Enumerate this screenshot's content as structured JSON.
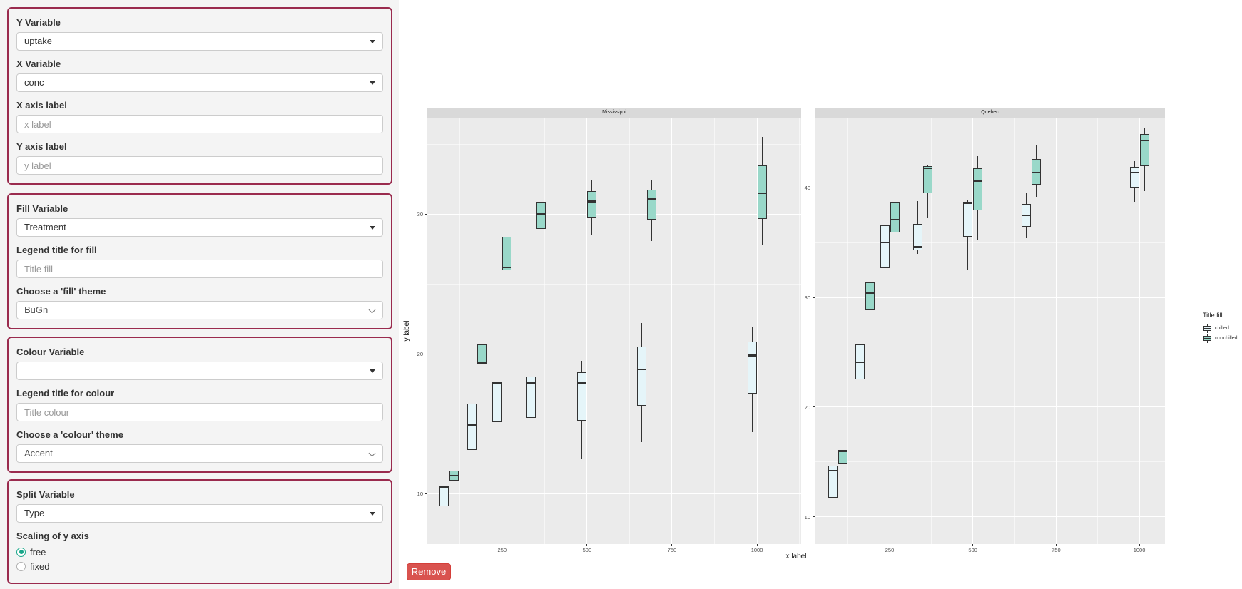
{
  "app": {
    "sidebar_bg": "#f4f4f4",
    "accent_border_color": "#9A2B4E",
    "radio_accent_color": "#18A689",
    "remove_button_color": "#D9534F"
  },
  "sidebar": {
    "section1": {
      "y_variable_label": "Y Variable",
      "y_variable_value": "uptake",
      "x_variable_label": "X Variable",
      "x_variable_value": "conc",
      "x_axis_label_label": "X axis label",
      "x_axis_label_placeholder": "x label",
      "y_axis_label_label": "Y axis label",
      "y_axis_label_placeholder": "y label"
    },
    "section2": {
      "fill_variable_label": "Fill Variable",
      "fill_variable_value": "Treatment",
      "legend_title_fill_label": "Legend title for fill",
      "legend_title_fill_placeholder": "Title fill",
      "fill_theme_label": "Choose a 'fill' theme",
      "fill_theme_value": "BuGn"
    },
    "section3": {
      "colour_variable_label": "Colour Variable",
      "colour_variable_value": "",
      "legend_title_colour_label": "Legend title for colour",
      "legend_title_colour_placeholder": "Title colour",
      "colour_theme_label": "Choose a 'colour' theme",
      "colour_theme_value": "Accent"
    },
    "section4": {
      "split_variable_label": "Split Variable",
      "split_variable_value": "Type",
      "scaling_label": "Scaling of y axis",
      "radio_options": [
        {
          "label": "free",
          "selected": true
        },
        {
          "label": "fixed",
          "selected": false
        }
      ]
    }
  },
  "actions": {
    "remove_label": "Remove"
  },
  "chart_data": {
    "type": "boxplot",
    "xlabel": "x label",
    "ylabel": "y label",
    "legend": {
      "title": "Title fill",
      "position": "right",
      "entries": [
        {
          "label": "chilled",
          "fill": "#E5F5F9"
        },
        {
          "label": "nonchilled",
          "fill": "#99D8C9"
        }
      ]
    },
    "x_ticks": [
      250,
      500,
      750,
      1000
    ],
    "x_minor": [
      125,
      375,
      625,
      875,
      1125
    ],
    "style": {
      "panel_bg": "#EBEBEB",
      "strip_bg": "#D9D9D9",
      "grid_major": "#FFFFFF",
      "grid_minor": "rgba(255,255,255,0.55)",
      "box_border": "#333333",
      "tick_text": "#4d4d4d",
      "strip_text": "#1a1a1a",
      "axis_title_text": "#1a1a1a"
    },
    "facets": [
      {
        "name": "Mississippi",
        "x_domain": [
          30,
          1130
        ],
        "y_domain": [
          6.4,
          36.9
        ],
        "y_ticks": [
          10,
          20,
          30
        ],
        "y_minor": [
          15,
          25,
          35
        ],
        "series": [
          {
            "name": "chilled",
            "boxes": [
              {
                "x": 95,
                "lo": 7.7,
                "q1": 9.1,
                "med": 10.5,
                "q3": 10.55,
                "hi": 10.6
              },
              {
                "x": 175,
                "lo": 11.4,
                "q1": 13.15,
                "med": 14.9,
                "q3": 16.45,
                "hi": 18.0
              },
              {
                "x": 250,
                "lo": 12.3,
                "q1": 15.1,
                "med": 17.9,
                "q3": 18.0,
                "hi": 18.1
              },
              {
                "x": 350,
                "lo": 13.0,
                "q1": 15.45,
                "med": 17.9,
                "q3": 18.4,
                "hi": 18.9
              },
              {
                "x": 500,
                "lo": 12.5,
                "q1": 15.2,
                "med": 17.9,
                "q3": 18.7,
                "hi": 19.5
              },
              {
                "x": 675,
                "lo": 13.7,
                "q1": 16.3,
                "med": 18.9,
                "q3": 20.55,
                "hi": 22.2
              },
              {
                "x": 1000,
                "lo": 14.4,
                "q1": 17.15,
                "med": 19.9,
                "q3": 20.9,
                "hi": 21.9
              }
            ]
          },
          {
            "name": "nonchilled",
            "boxes": [
              {
                "x": 95,
                "lo": 10.6,
                "q1": 10.95,
                "med": 11.3,
                "q3": 11.65,
                "hi": 12.0
              },
              {
                "x": 175,
                "lo": 19.2,
                "q1": 19.3,
                "med": 19.4,
                "q3": 20.7,
                "hi": 22.0
              },
              {
                "x": 250,
                "lo": 25.8,
                "q1": 26.0,
                "med": 26.2,
                "q3": 28.4,
                "hi": 30.6
              },
              {
                "x": 350,
                "lo": 27.9,
                "q1": 28.95,
                "med": 30.0,
                "q3": 30.9,
                "hi": 31.8
              },
              {
                "x": 500,
                "lo": 28.5,
                "q1": 29.7,
                "med": 30.9,
                "q3": 31.65,
                "hi": 32.4
              },
              {
                "x": 675,
                "lo": 28.1,
                "q1": 29.6,
                "med": 31.1,
                "q3": 31.75,
                "hi": 32.4
              },
              {
                "x": 1000,
                "lo": 27.8,
                "q1": 29.65,
                "med": 31.5,
                "q3": 33.5,
                "hi": 35.5
              }
            ]
          }
        ]
      },
      {
        "name": "Quebec",
        "x_domain": [
          25,
          1077
        ],
        "y_domain": [
          7.5,
          46.4
        ],
        "y_ticks": [
          10,
          20,
          30,
          40
        ],
        "y_minor": [
          15,
          25,
          35,
          45
        ],
        "series": [
          {
            "name": "chilled",
            "boxes": [
              {
                "x": 95,
                "lo": 9.3,
                "q1": 11.75,
                "med": 14.2,
                "q3": 14.65,
                "hi": 15.1
              },
              {
                "x": 175,
                "lo": 21.0,
                "q1": 22.55,
                "med": 24.1,
                "q3": 25.7,
                "hi": 27.3
              },
              {
                "x": 250,
                "lo": 30.3,
                "q1": 32.65,
                "med": 35.0,
                "q3": 36.55,
                "hi": 38.1
              },
              {
                "x": 350,
                "lo": 34.0,
                "q1": 34.3,
                "med": 34.6,
                "q3": 36.7,
                "hi": 38.8
              },
              {
                "x": 500,
                "lo": 32.5,
                "q1": 35.55,
                "med": 38.6,
                "q3": 38.75,
                "hi": 38.9
              },
              {
                "x": 675,
                "lo": 35.4,
                "q1": 36.45,
                "med": 37.5,
                "q3": 38.55,
                "hi": 39.6
              },
              {
                "x": 1000,
                "lo": 38.7,
                "q1": 40.05,
                "med": 41.4,
                "q3": 41.9,
                "hi": 42.4
              }
            ]
          },
          {
            "name": "nonchilled",
            "boxes": [
              {
                "x": 95,
                "lo": 13.6,
                "q1": 14.8,
                "med": 16.0,
                "q3": 16.1,
                "hi": 16.2
              },
              {
                "x": 175,
                "lo": 27.3,
                "q1": 28.85,
                "med": 30.4,
                "q3": 31.4,
                "hi": 32.4
              },
              {
                "x": 250,
                "lo": 34.8,
                "q1": 35.95,
                "med": 37.1,
                "q3": 38.7,
                "hi": 40.3
              },
              {
                "x": 350,
                "lo": 37.2,
                "q1": 39.5,
                "med": 41.8,
                "q3": 41.95,
                "hi": 42.1
              },
              {
                "x": 500,
                "lo": 35.3,
                "q1": 37.95,
                "med": 40.6,
                "q3": 41.75,
                "hi": 42.9
              },
              {
                "x": 675,
                "lo": 39.2,
                "q1": 40.3,
                "med": 41.4,
                "q3": 42.65,
                "hi": 43.9
              },
              {
                "x": 1000,
                "lo": 39.7,
                "q1": 42.0,
                "med": 44.3,
                "q3": 44.9,
                "hi": 45.5
              }
            ]
          }
        ]
      }
    ]
  }
}
